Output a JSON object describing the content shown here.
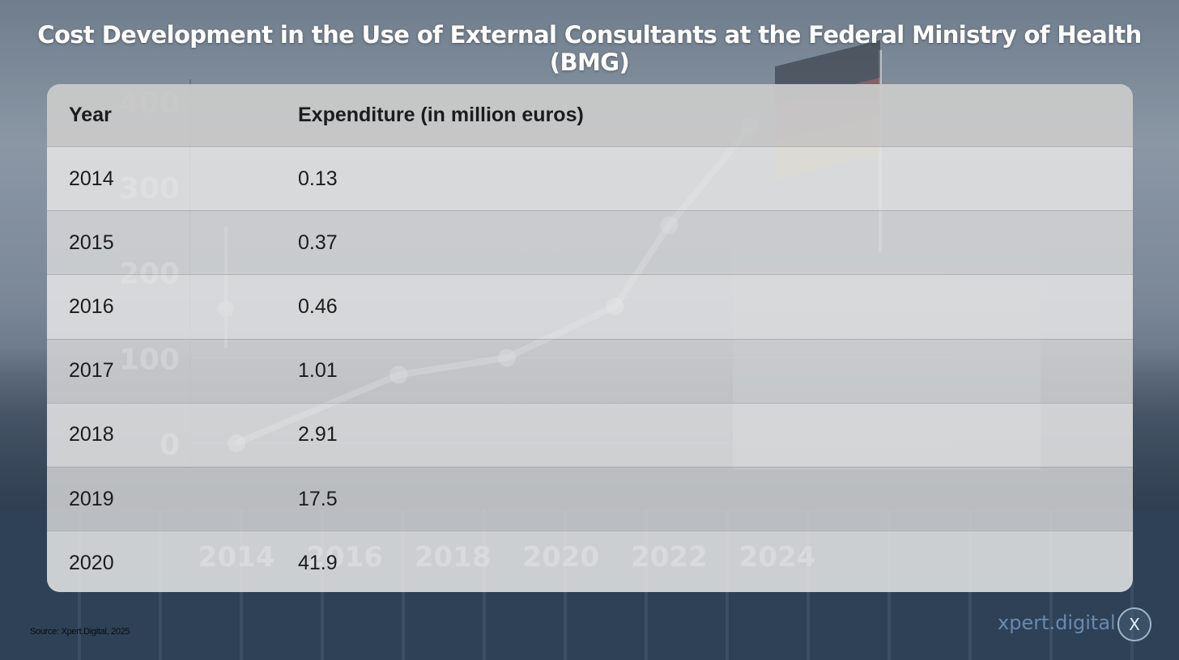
{
  "title": "Cost Development in the Use of External Consultants at the Federal Ministry of Health (BMG)",
  "table": {
    "headers": {
      "year": "Year",
      "value": "Expenditure (in million euros)"
    },
    "rows": [
      {
        "year": "2014",
        "value": "0.13"
      },
      {
        "year": "2015",
        "value": "0.37"
      },
      {
        "year": "2016",
        "value": "0.46"
      },
      {
        "year": "2017",
        "value": "1.01"
      },
      {
        "year": "2018",
        "value": "2.91"
      },
      {
        "year": "2019",
        "value": "17.5"
      },
      {
        "year": "2020",
        "value": "41.9"
      }
    ]
  },
  "chart_data": [
    {
      "type": "table",
      "columns": [
        "Year",
        "Expenditure (in million euros)"
      ],
      "rows": [
        [
          "2014",
          0.13
        ],
        [
          "2015",
          0.37
        ],
        [
          "2016",
          0.46
        ],
        [
          "2017",
          1.01
        ],
        [
          "2018",
          2.91
        ],
        [
          "2019",
          17.5
        ],
        [
          "2020",
          41.9
        ]
      ]
    },
    {
      "type": "line",
      "x": [
        2014,
        2017,
        2019,
        2021,
        2022,
        2023.5
      ],
      "series": [
        {
          "values": [
            0,
            80,
            100,
            160,
            255,
            370
          ]
        }
      ],
      "xticks": [
        "2014",
        "2016",
        "2018",
        "2020",
        "2022",
        "2024"
      ],
      "yticks": [
        "0",
        "100",
        "200",
        "300",
        "400"
      ],
      "xlim": [
        2014,
        2024
      ],
      "ylim": [
        0,
        400
      ],
      "grid": true
    }
  ],
  "source": "Source: Xpert.Digital, 2025",
  "brand": {
    "name": "xpert.digital",
    "logo_letter": "X"
  }
}
